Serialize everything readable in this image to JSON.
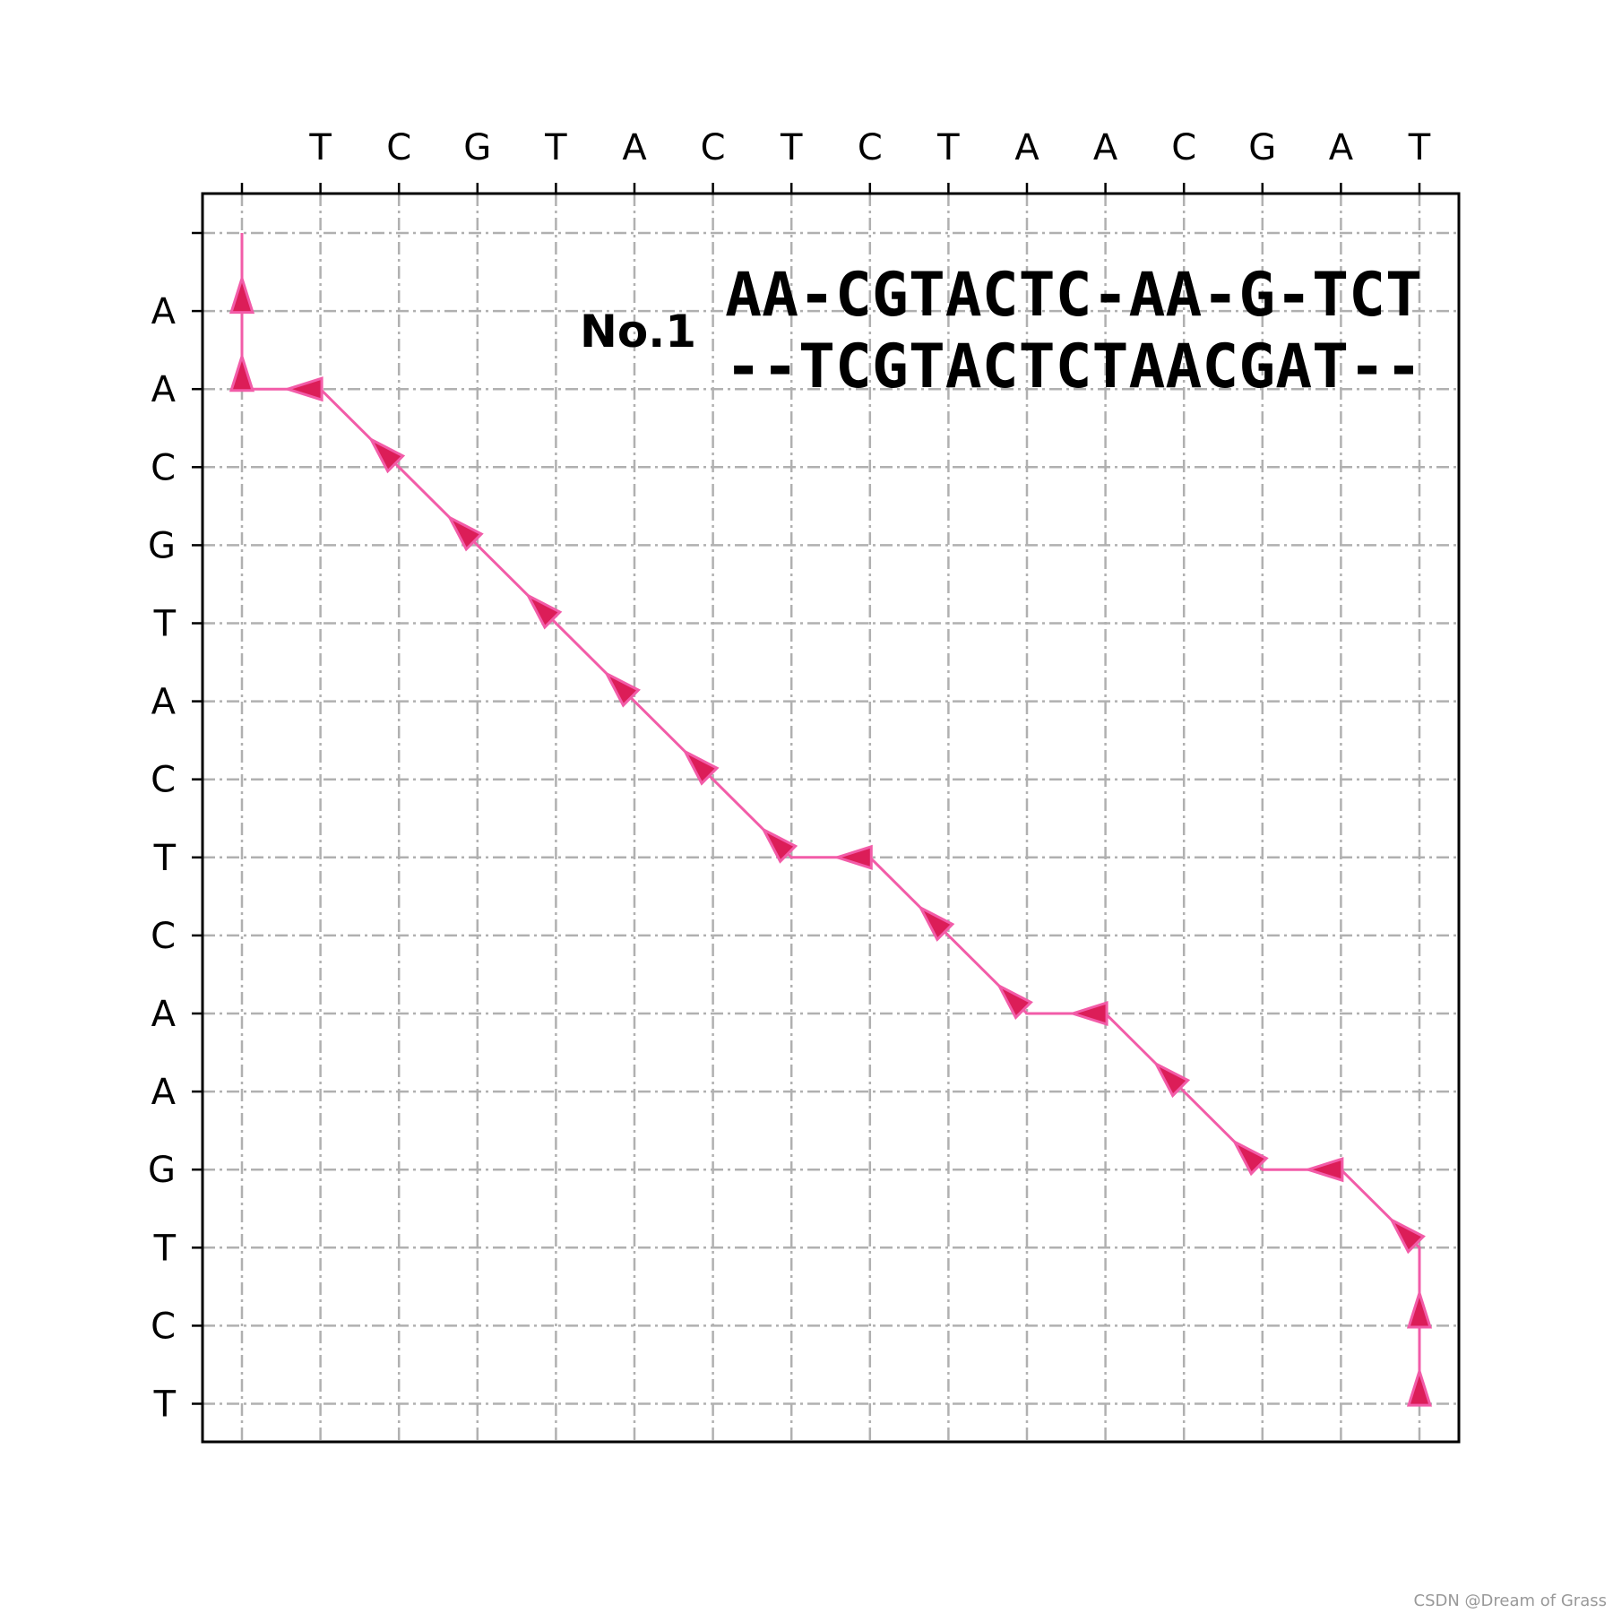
{
  "chart_data": {
    "type": "line",
    "x_sequence": [
      "T",
      "C",
      "G",
      "T",
      "A",
      "C",
      "T",
      "C",
      "T",
      "A",
      "A",
      "C",
      "G",
      "A",
      "T"
    ],
    "y_sequence": [
      "A",
      "A",
      "C",
      "G",
      "T",
      "A",
      "C",
      "T",
      "C",
      "A",
      "A",
      "G",
      "T",
      "C",
      "T"
    ],
    "path": [
      [
        15,
        15
      ],
      [
        15,
        14
      ],
      [
        15,
        13
      ],
      [
        14,
        12
      ],
      [
        13,
        12
      ],
      [
        12,
        11
      ],
      [
        11,
        10
      ],
      [
        10,
        10
      ],
      [
        9,
        9
      ],
      [
        8,
        8
      ],
      [
        7,
        8
      ],
      [
        6,
        7
      ],
      [
        5,
        6
      ],
      [
        4,
        5
      ],
      [
        3,
        4
      ],
      [
        2,
        3
      ],
      [
        1,
        2
      ],
      [
        0,
        2
      ],
      [
        0,
        1
      ],
      [
        0,
        0
      ]
    ],
    "label": "No.1",
    "alignment": [
      "AA-CGTACTC-AA-G-TCT",
      "--TCGTACTCTAACGAT--"
    ],
    "grid": true,
    "colors": {
      "path_line": "#f25ca8",
      "arrow_fill": "#dc1d58",
      "arrow_edge": "#f25ca8",
      "grid": "#b0b0b0",
      "axes": "#000000"
    }
  },
  "watermark": "CSDN @Dream of Grass"
}
